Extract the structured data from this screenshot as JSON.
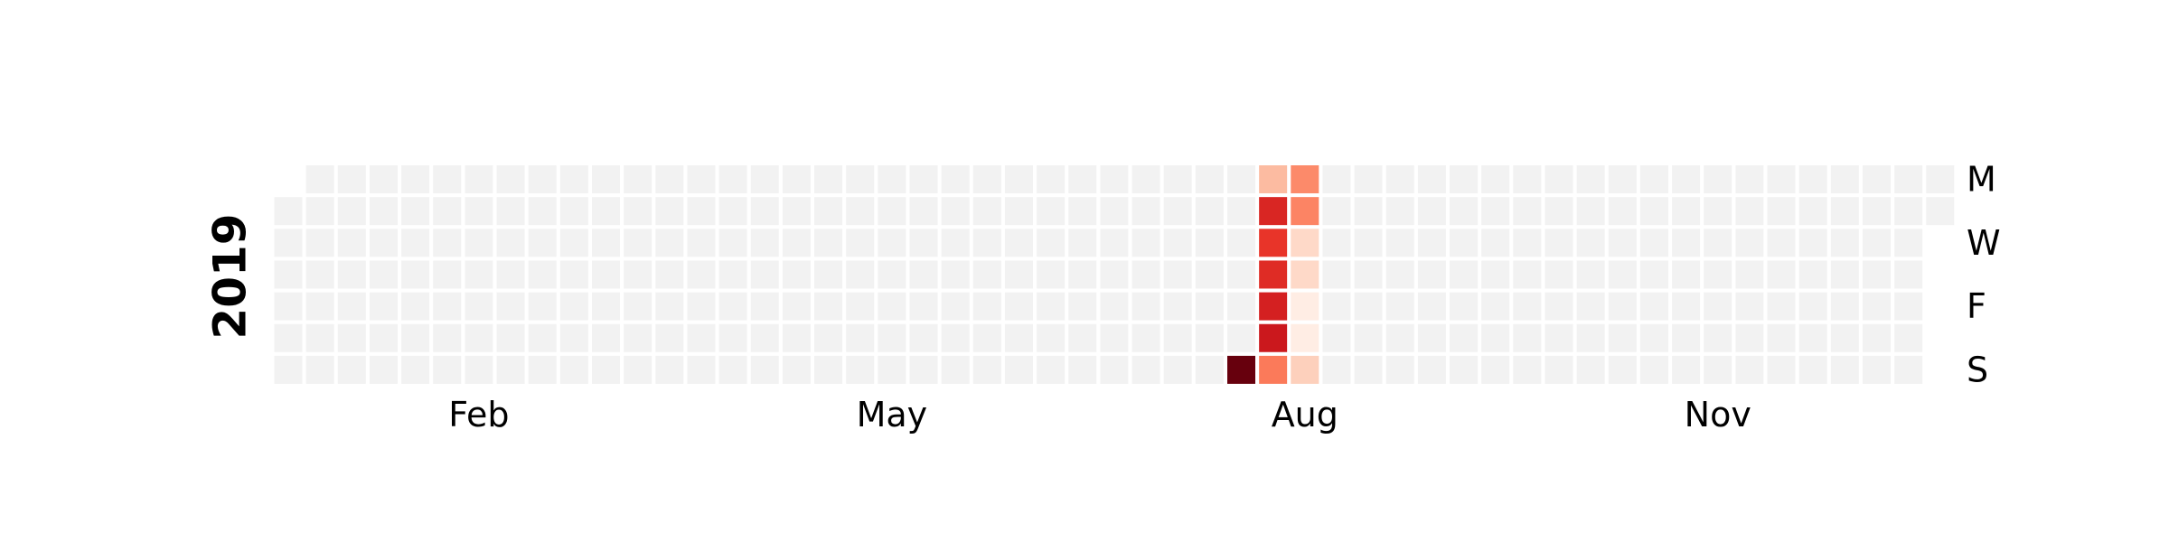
{
  "chart_data": {
    "type": "heatmap",
    "year": "2019",
    "week_start": "Monday",
    "row_labels": [
      "M",
      "",
      "W",
      "",
      "F",
      "",
      "S"
    ],
    "month_labels": [
      "Feb",
      "May",
      "Aug",
      "Nov"
    ],
    "colormap": "Reds",
    "empty_color": "#f2f2f2",
    "grid": false,
    "values": [
      {
        "date": "2019-08-04",
        "value": 1.0
      },
      {
        "date": "2019-08-05",
        "value": 0.25
      },
      {
        "date": "2019-08-06",
        "value": 0.7
      },
      {
        "date": "2019-08-07",
        "value": 0.65
      },
      {
        "date": "2019-08-08",
        "value": 0.68
      },
      {
        "date": "2019-08-09",
        "value": 0.72
      },
      {
        "date": "2019-08-10",
        "value": 0.75
      },
      {
        "date": "2019-08-11",
        "value": 0.45
      },
      {
        "date": "2019-08-12",
        "value": 0.4
      },
      {
        "date": "2019-08-13",
        "value": 0.42
      },
      {
        "date": "2019-08-14",
        "value": 0.15
      },
      {
        "date": "2019-08-15",
        "value": 0.15
      },
      {
        "date": "2019-08-16",
        "value": 0.05
      },
      {
        "date": "2019-08-17",
        "value": 0.05
      },
      {
        "date": "2019-08-18",
        "value": 0.18
      }
    ]
  }
}
